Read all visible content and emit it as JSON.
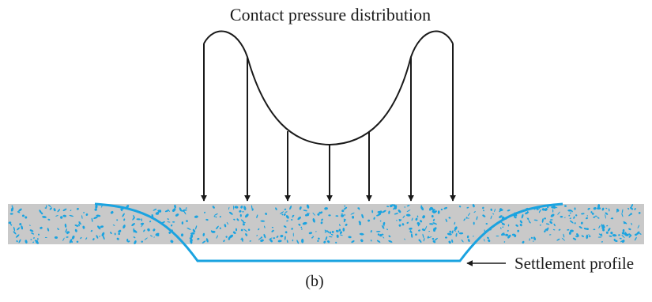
{
  "diagram": {
    "title": "Contact pressure distribution",
    "settlement_label": "Settlement profile",
    "caption": "(b)"
  },
  "colors": {
    "soil_fill": "#c9c9c9",
    "soil_speckle": "#1aa3e0",
    "settlement_line": "#1aa3e0",
    "ink": "#1a1a1a"
  }
}
